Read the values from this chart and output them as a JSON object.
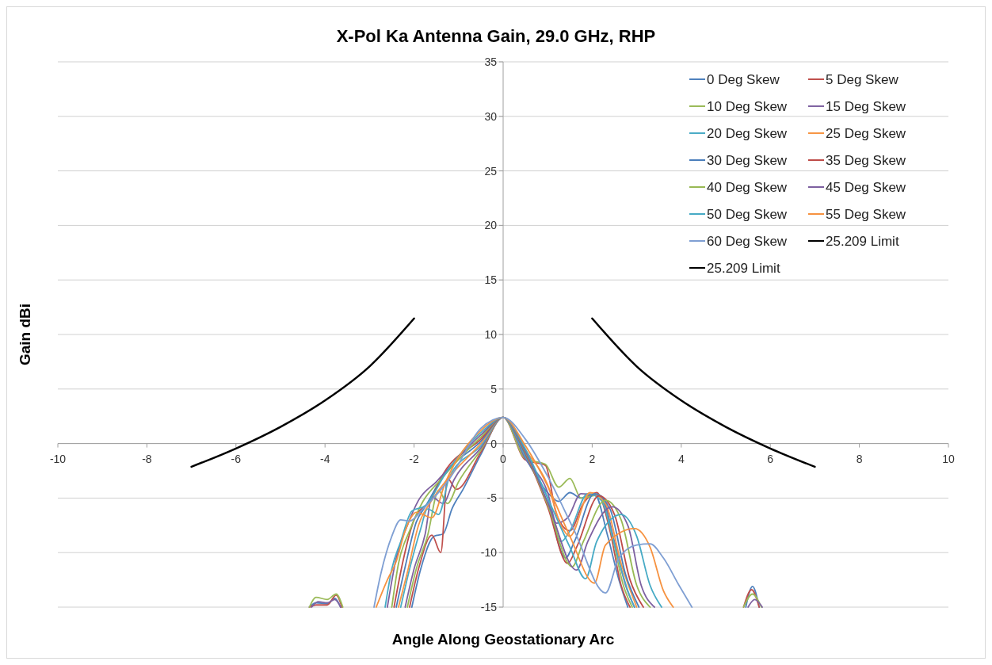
{
  "chart_data": {
    "type": "line",
    "title": "X-Pol Ka Antenna Gain, 29.0 GHz, RHP",
    "xlabel": "Angle Along Geostationary Arc",
    "ylabel": "Gain dBi",
    "xlim": [
      -10,
      10
    ],
    "ylim": [
      -15,
      35
    ],
    "xticks": [
      -10,
      -8,
      -6,
      -4,
      -2,
      0,
      2,
      4,
      6,
      8,
      10
    ],
    "yticks": [
      -15,
      -10,
      -5,
      0,
      5,
      10,
      15,
      20,
      25,
      30,
      35
    ],
    "grid": "y",
    "legend": "top right",
    "series": [
      {
        "name": "0 Deg Skew",
        "color": "#4f81bd",
        "x": [
          -4.35,
          -4.2,
          -3.95,
          -3.78,
          -3.65,
          -3.0,
          -2.05,
          -1.85,
          -1.55,
          -1.35,
          -1.15,
          -0.9,
          -0.5,
          0,
          0.5,
          1.0,
          1.25,
          1.5,
          1.75,
          2.05,
          2.35,
          2.6,
          2.8,
          4.5,
          5.45,
          5.6,
          5.75
        ],
        "values": [
          -15,
          -14.6,
          -14.7,
          -14.2,
          -15,
          null,
          -15,
          -11.5,
          -8.5,
          -8.3,
          -6,
          -4.2,
          -1.0,
          2.4,
          -1.3,
          -4.5,
          -5.3,
          -4.5,
          -5.0,
          -4.6,
          -8.5,
          -12.5,
          -15,
          null,
          -15,
          -13.1,
          -15
        ]
      },
      {
        "name": "5 Deg Skew",
        "color": "#c0504d",
        "x": [
          -4.35,
          -4.2,
          -3.95,
          -3.75,
          -3.62,
          -3.0,
          -2.1,
          -1.9,
          -1.6,
          -1.4,
          -1.25,
          -1.05,
          -0.5,
          0,
          0.5,
          0.95,
          1.2,
          1.5,
          1.8,
          2.1,
          2.4,
          2.65,
          2.85,
          4.5,
          5.4,
          5.58,
          5.75
        ],
        "values": [
          -15,
          -14.8,
          -14.8,
          -13.9,
          -15,
          null,
          -15,
          -11.5,
          -8.4,
          -10,
          -3.2,
          -4.2,
          -0.8,
          2.4,
          -1.5,
          -2.0,
          -6.5,
          -8,
          -5.5,
          -4.5,
          -8,
          -13,
          -15,
          null,
          -15,
          -13.4,
          -15
        ]
      },
      {
        "name": "10 Deg Skew",
        "color": "#9bbb59",
        "x": [
          -4.35,
          -4.2,
          -3.95,
          -3.75,
          -3.6,
          -3.0,
          -2.15,
          -1.95,
          -1.7,
          -1.45,
          -1.25,
          -1.0,
          -0.5,
          0,
          0.5,
          0.95,
          1.25,
          1.5,
          1.75,
          2.15,
          2.45,
          2.7,
          2.9,
          4.5,
          5.4,
          5.6,
          5.8
        ],
        "values": [
          -15,
          -14.1,
          -14.3,
          -13.8,
          -15,
          null,
          -15,
          -11.5,
          -8.5,
          -4.3,
          -5.5,
          -3.5,
          -0.6,
          2.4,
          -1.4,
          -1.9,
          -4,
          -3.2,
          -5,
          -4.7,
          -8.5,
          -13,
          -15,
          null,
          -15,
          -13.8,
          -15
        ]
      },
      {
        "name": "15 Deg Skew",
        "color": "#8064a2",
        "x": [
          -4.3,
          -4.15,
          -3.95,
          -3.78,
          -3.65,
          -3.0,
          -2.2,
          -2.0,
          -1.75,
          -1.6,
          -1.35,
          -1.1,
          -0.5,
          0,
          0.5,
          1.0,
          1.2,
          1.45,
          1.75,
          2.2,
          2.5,
          2.75,
          2.95,
          4.5,
          5.5,
          5.65,
          5.82
        ],
        "values": [
          -15,
          -14.5,
          -14.6,
          -14.3,
          -15,
          null,
          -15,
          -11.5,
          -8.3,
          -4.9,
          -5.5,
          -3.3,
          -0.4,
          2.4,
          -1.4,
          -4.5,
          -7.3,
          -6.8,
          -4.6,
          -4.8,
          -9,
          -13,
          -15,
          null,
          -15,
          -14.3,
          -15
        ]
      },
      {
        "name": "20 Deg Skew",
        "color": "#4bacc6",
        "x": [
          -2.3,
          -2.1,
          -1.85,
          -1.7,
          -1.45,
          -1.2,
          -0.5,
          0,
          0.5,
          1.0,
          1.3,
          1.5,
          1.9,
          2.2,
          2.55,
          2.8,
          2.95
        ],
        "values": [
          -15,
          -11.5,
          -7.8,
          -6.0,
          -6.5,
          -3.0,
          -0.2,
          2.4,
          -1.2,
          -5,
          -9,
          -8,
          -4.6,
          -5.2,
          -10,
          -13.5,
          -15
        ]
      },
      {
        "name": "25 Deg Skew",
        "color": "#f79646",
        "x": [
          -2.35,
          -2.15,
          -1.9,
          -1.6,
          -1.3,
          -0.5,
          0,
          0.5,
          1.0,
          1.3,
          1.5,
          1.95,
          2.3,
          2.65,
          3.0
        ],
        "values": [
          -15,
          -11.8,
          -7.5,
          -5.2,
          -3.5,
          0.0,
          2.4,
          -0.6,
          -3.8,
          -7.5,
          -8.5,
          -4.5,
          -5.5,
          -11,
          -15
        ]
      },
      {
        "name": "30 Deg Skew",
        "color": "#4a7ebb",
        "x": [
          -2.4,
          -2.2,
          -1.95,
          -1.75,
          -1.35,
          -0.5,
          0,
          0.5,
          1.0,
          1.4,
          1.6,
          2.05,
          2.4,
          2.75,
          3.05
        ],
        "values": [
          -15,
          -11.3,
          -7.2,
          -5.8,
          -3.0,
          0.2,
          2.4,
          -1.0,
          -5.5,
          -10.5,
          -9,
          -4.6,
          -6,
          -12,
          -15
        ]
      },
      {
        "name": "35 Deg Skew",
        "color": "#be4b48",
        "x": [
          -2.45,
          -2.25,
          -2.0,
          -1.6,
          -1.4,
          -0.5,
          0,
          0.5,
          1.0,
          1.45,
          1.65,
          2.15,
          2.5,
          2.85,
          3.15
        ],
        "values": [
          -15,
          -10.8,
          -7.0,
          -5.0,
          -3.2,
          0.4,
          2.4,
          -0.9,
          -5.8,
          -11,
          -9.5,
          -4.8,
          -6.5,
          -12.5,
          -15
        ]
      },
      {
        "name": "40 Deg Skew",
        "color": "#98b954",
        "x": [
          -2.5,
          -2.35,
          -2.1,
          -1.8,
          -1.4,
          -0.5,
          0,
          0.5,
          1.0,
          1.55,
          1.8,
          2.3,
          2.65,
          3.0,
          3.3
        ],
        "values": [
          -15,
          -11,
          -8,
          -5.3,
          -3.3,
          0.6,
          2.4,
          -0.8,
          -5.6,
          -11.3,
          -9,
          -5.2,
          -7,
          -13,
          -15
        ]
      },
      {
        "name": "45 Deg Skew",
        "color": "#7d60a0",
        "x": [
          -2.6,
          -2.4,
          -2.15,
          -1.9,
          -1.5,
          -0.5,
          0,
          0.5,
          1.0,
          1.65,
          1.9,
          2.45,
          2.8,
          3.1,
          3.4
        ],
        "values": [
          -15,
          -10.5,
          -7.5,
          -5.2,
          -3.5,
          0.8,
          2.4,
          -0.7,
          -5.4,
          -11.6,
          -9,
          -5.8,
          -7.5,
          -13,
          -15
        ]
      },
      {
        "name": "50 Deg Skew",
        "color": "#46aac5",
        "x": [
          -2.65,
          -2.5,
          -2.3,
          -2.05,
          -1.75,
          -1.3,
          -0.5,
          0,
          0.5,
          1.0,
          1.5,
          1.85,
          2.1,
          2.65,
          3.0,
          3.3,
          3.56
        ],
        "values": [
          -15,
          -11.5,
          -9,
          -6.2,
          -5.7,
          -2.8,
          1.0,
          2.4,
          -0.5,
          -5.0,
          -9.5,
          -12.4,
          -9,
          -6.5,
          -8.5,
          -13,
          -15
        ]
      },
      {
        "name": "55 Deg Skew",
        "color": "#f69240",
        "x": [
          -2.85,
          -2.6,
          -2.4,
          -2.2,
          -1.95,
          -1.6,
          -1.3,
          -0.5,
          0,
          0.5,
          1.0,
          1.5,
          2.05,
          2.3,
          2.95,
          3.3,
          3.6,
          3.82
        ],
        "values": [
          -15,
          -12.5,
          -10.8,
          -8,
          -6.3,
          -6.8,
          -3.6,
          1.2,
          2.4,
          -0.2,
          -3.9,
          -8.5,
          -12.8,
          -9.3,
          -7.8,
          -9.5,
          -13.5,
          -15
        ]
      },
      {
        "name": "60 Deg Skew",
        "color": "#7f9fd3",
        "x": [
          -2.9,
          -2.75,
          -2.5,
          -2.3,
          -2.1,
          -1.8,
          -1.2,
          -0.5,
          0,
          0.5,
          1.0,
          1.6,
          2.3,
          2.6,
          3.0,
          3.3,
          3.6,
          3.95,
          4.24
        ],
        "values": [
          -15,
          -12,
          -8.5,
          -7.0,
          -7.1,
          -6.0,
          -3.2,
          1.4,
          2.4,
          0.4,
          -3.0,
          -8,
          -13.7,
          -10.5,
          -9.3,
          -9.2,
          -10.5,
          -13,
          -15
        ]
      },
      {
        "name": "25.209 Limit",
        "color": "#000000",
        "x": [
          -7,
          -6,
          -5,
          -4,
          -3,
          -2
        ],
        "values": [
          -2.13,
          -0.45,
          1.53,
          3.95,
          7.07,
          11.47
        ]
      },
      {
        "name": "25.209 Limit",
        "color": "#000000",
        "x": [
          2,
          3,
          4,
          5,
          6,
          7
        ],
        "values": [
          11.47,
          7.07,
          3.95,
          1.53,
          -0.45,
          -2.13
        ]
      }
    ]
  }
}
